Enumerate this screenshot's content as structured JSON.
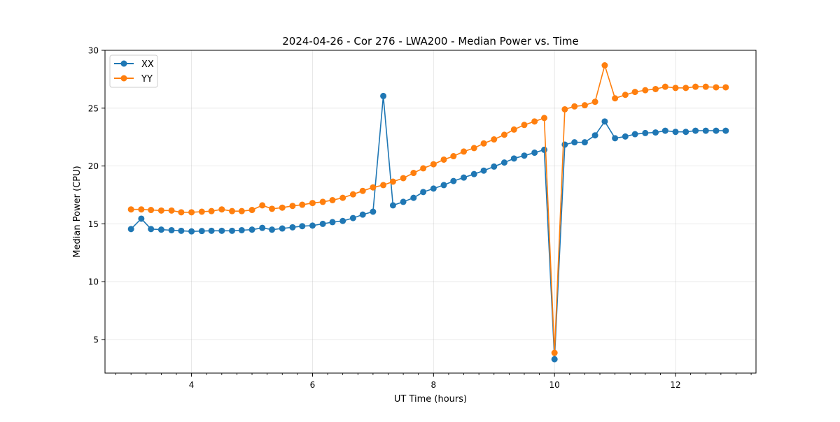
{
  "chart_data": {
    "type": "line",
    "title": "2024-04-26 - Cor 276 - LWA200 - Median Power vs. Time",
    "xlabel": "UT Time (hours)",
    "ylabel": "Median Power (CPU)",
    "xlim": [
      2.57,
      13.33
    ],
    "ylim": [
      2.1,
      30
    ],
    "xticks": [
      4,
      6,
      8,
      10,
      12
    ],
    "xtick_labels": [
      "4",
      "6",
      "8",
      "10",
      "12"
    ],
    "yticks": [
      5,
      10,
      15,
      20,
      25,
      30
    ],
    "ytick_labels": [
      "5",
      "10",
      "15",
      "20",
      "25",
      "30"
    ],
    "grid": true,
    "legend_position": "upper-left",
    "x": [
      3.0,
      3.17,
      3.33,
      3.5,
      3.67,
      3.83,
      4.0,
      4.17,
      4.33,
      4.5,
      4.67,
      4.83,
      5.0,
      5.17,
      5.33,
      5.5,
      5.67,
      5.83,
      6.0,
      6.17,
      6.33,
      6.5,
      6.67,
      6.83,
      7.0,
      7.17,
      7.33,
      7.5,
      7.67,
      7.83,
      8.0,
      8.17,
      8.33,
      8.5,
      8.67,
      8.83,
      9.0,
      9.17,
      9.33,
      9.5,
      9.67,
      9.83,
      10.0,
      10.17,
      10.33,
      10.5,
      10.67,
      10.83,
      11.0,
      11.17,
      11.33,
      11.5,
      11.67,
      11.83,
      12.0,
      12.17,
      12.33,
      12.5,
      12.67,
      12.83
    ],
    "series": [
      {
        "name": "XX",
        "color": "#1f77b4",
        "values": [
          14.55,
          15.45,
          14.55,
          14.5,
          14.45,
          14.4,
          14.35,
          14.38,
          14.4,
          14.4,
          14.4,
          14.45,
          14.5,
          14.65,
          14.5,
          14.6,
          14.7,
          14.8,
          14.85,
          15.0,
          15.15,
          15.25,
          15.5,
          15.8,
          16.05,
          26.05,
          16.6,
          16.9,
          17.25,
          17.75,
          18.05,
          18.35,
          18.7,
          19.0,
          19.3,
          19.6,
          19.95,
          20.3,
          20.65,
          20.9,
          21.15,
          21.4,
          3.3,
          21.85,
          22.05,
          22.05,
          22.65,
          23.85,
          22.4,
          22.55,
          22.75,
          22.85,
          22.9,
          23.05,
          22.95,
          22.95,
          23.05,
          23.05,
          23.05,
          23.05
        ]
      },
      {
        "name": "YY",
        "color": "#ff7f0e",
        "values": [
          16.25,
          16.25,
          16.2,
          16.15,
          16.15,
          16.0,
          16.0,
          16.05,
          16.1,
          16.25,
          16.1,
          16.1,
          16.2,
          16.6,
          16.3,
          16.4,
          16.55,
          16.65,
          16.8,
          16.9,
          17.05,
          17.25,
          17.55,
          17.85,
          18.15,
          18.35,
          18.65,
          18.95,
          19.4,
          19.8,
          20.15,
          20.55,
          20.85,
          21.25,
          21.55,
          21.95,
          22.3,
          22.7,
          23.15,
          23.55,
          23.85,
          24.15,
          3.85,
          24.9,
          25.15,
          25.25,
          25.55,
          28.7,
          25.85,
          26.15,
          26.4,
          26.55,
          26.65,
          26.85,
          26.75,
          26.75,
          26.85,
          26.85,
          26.8,
          26.8
        ]
      }
    ]
  }
}
